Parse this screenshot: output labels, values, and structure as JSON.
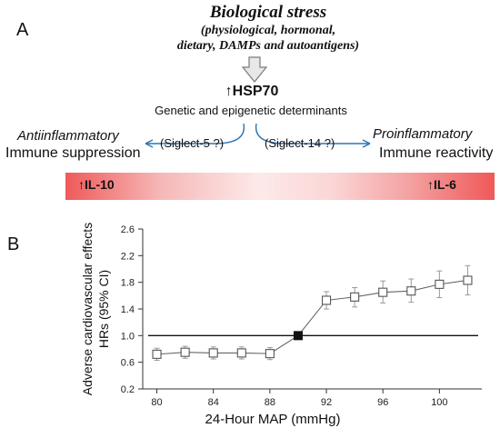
{
  "panel_a": {
    "label": "A",
    "stress_title": "Biological stress",
    "stress_line1": "(physiological, hormonal,",
    "stress_line2": "dietary, DAMPs and  autoantigens)",
    "hsp70": "↑HSP70",
    "determinants": "Genetic and epigenetic determinants",
    "left_italic": "Antiinflammatory",
    "left_main": "Immune suppression",
    "left_receptor": "(Siglect-5 ?)",
    "right_italic": "Proinflammatory",
    "right_main": "Immune reactivity",
    "right_receptor": "(Siglect-14 ?)",
    "il10": "↑IL-10",
    "il6": "↑IL-6",
    "colors": {
      "arrow_blue": "#2e75b6",
      "bar_red": "#ef5858",
      "bar_light": "#fde9e9"
    }
  },
  "panel_b": {
    "label": "B"
  },
  "chart_data": {
    "type": "line",
    "xlabel": "24-Hour  MAP (mmHg)",
    "ylabel_line1": "Adverse cardiovascular effects",
    "ylabel_line2": "HRs (95% CI)",
    "xlim": [
      79,
      103
    ],
    "ylim": [
      0.2,
      2.6
    ],
    "x_ticks": [
      80,
      84,
      88,
      92,
      96,
      100
    ],
    "y_ticks": [
      0.2,
      0.6,
      1.0,
      1.4,
      1.8,
      2.2,
      2.6
    ],
    "x_tick_labels": [
      "80",
      "84",
      "88",
      "92",
      "96",
      "100"
    ],
    "y_tick_labels": [
      "0.2",
      "0.6",
      "1.0",
      "1.4",
      "1.8",
      "2.2",
      "2.6"
    ],
    "reference_line": 1.0,
    "reference_point": {
      "x": 90,
      "y": 1.0
    },
    "points": [
      {
        "x": 80,
        "y": 0.72,
        "lo": 0.63,
        "hi": 0.81
      },
      {
        "x": 82,
        "y": 0.75,
        "lo": 0.66,
        "hi": 0.84
      },
      {
        "x": 84,
        "y": 0.74,
        "lo": 0.65,
        "hi": 0.83
      },
      {
        "x": 86,
        "y": 0.74,
        "lo": 0.65,
        "hi": 0.83
      },
      {
        "x": 88,
        "y": 0.73,
        "lo": 0.64,
        "hi": 0.82
      },
      {
        "x": 92,
        "y": 1.53,
        "lo": 1.4,
        "hi": 1.66
      },
      {
        "x": 94,
        "y": 1.58,
        "lo": 1.43,
        "hi": 1.72
      },
      {
        "x": 96,
        "y": 1.65,
        "lo": 1.49,
        "hi": 1.82
      },
      {
        "x": 98,
        "y": 1.67,
        "lo": 1.5,
        "hi": 1.85
      },
      {
        "x": 100,
        "y": 1.77,
        "lo": 1.57,
        "hi": 1.97
      },
      {
        "x": 102,
        "y": 1.83,
        "lo": 1.61,
        "hi": 2.05
      }
    ],
    "grid": false,
    "colors": {
      "marker_edge": "#555555",
      "marker_fill": "#ffffff",
      "line": "#666666",
      "errorbar": "#999999",
      "reference": "#111111"
    }
  }
}
